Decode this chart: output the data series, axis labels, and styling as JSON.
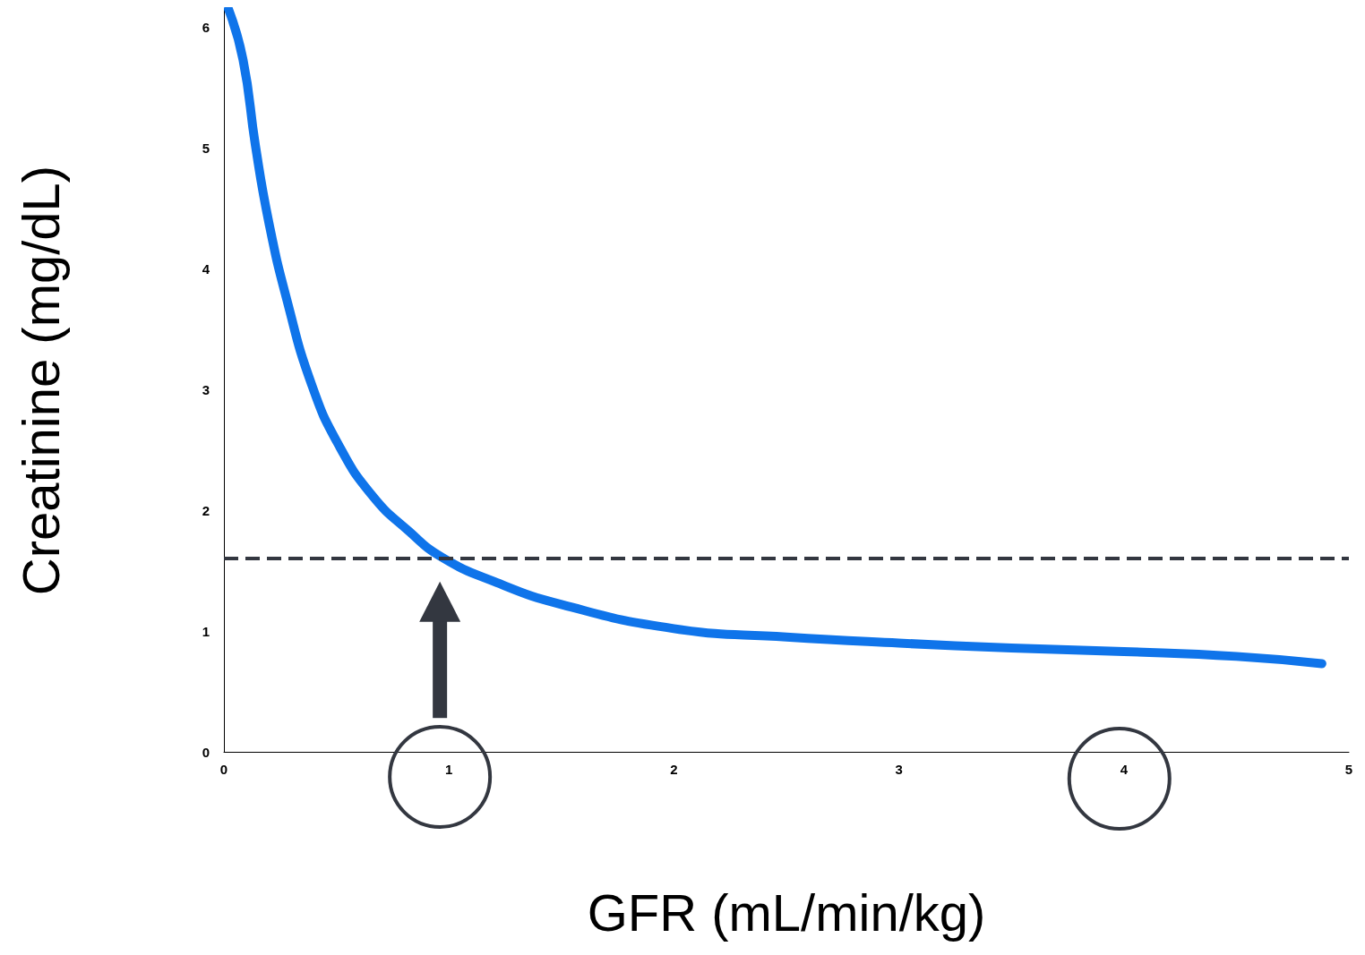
{
  "chart_data": {
    "type": "line",
    "xlabel": "GFR (mL/min/kg)",
    "ylabel": "Creatinine (mg/dL)",
    "x": [
      0.02,
      0.085,
      0.14,
      0.2,
      0.28,
      0.39,
      0.51,
      0.66,
      0.82,
      0.97,
      1.2,
      1.5,
      2,
      2.5,
      3,
      3.5,
      4,
      4.5,
      4.88
    ],
    "series": [
      {
        "color": "#0f74ea",
        "values": [
          6.15,
          5.73,
          5.02,
          4.38,
          3.74,
          3.04,
          2.54,
          2.12,
          1.83,
          1.61,
          1.41,
          1.22,
          1.02,
          0.95,
          0.9,
          0.86,
          0.83,
          0.79,
          0.73
        ]
      }
    ],
    "xlim": [
      0,
      5
    ],
    "xticks": [
      0,
      1,
      2,
      3,
      4,
      5
    ],
    "ylim": [
      0,
      6.15
    ],
    "yticks": [
      0,
      1,
      2,
      3,
      4,
      5,
      6
    ],
    "ref_lines": [
      {
        "axis": "y",
        "value": 1.6,
        "color": "#333740",
        "line_style": "dashed"
      }
    ],
    "grid": false,
    "line_style": "solid"
  }
}
